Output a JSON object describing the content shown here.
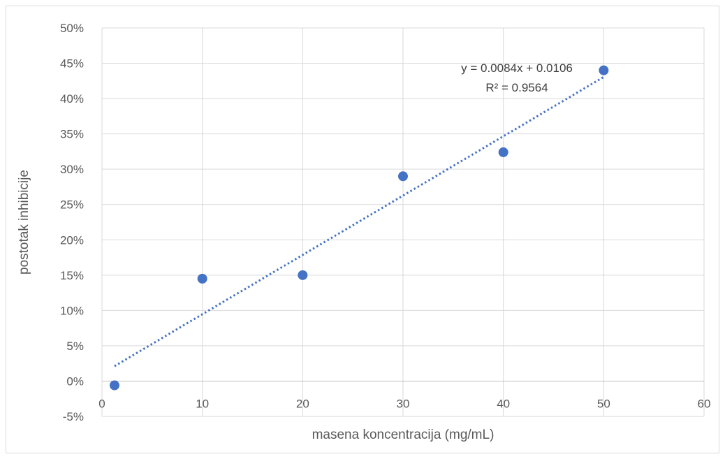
{
  "chart_data": {
    "type": "scatter",
    "xlabel": "masena koncentracija (mg/mL)",
    "ylabel": "postotak inhibicije",
    "xlim": [
      0,
      60
    ],
    "ylim": [
      -0.05,
      0.5
    ],
    "x_ticks": [
      0,
      10,
      20,
      30,
      40,
      50,
      60
    ],
    "x_tick_labels": [
      "0",
      "10",
      "20",
      "30",
      "40",
      "50",
      "60"
    ],
    "y_ticks": [
      -0.05,
      0,
      0.05,
      0.1,
      0.15,
      0.2,
      0.25,
      0.3,
      0.35,
      0.4,
      0.45,
      0.5
    ],
    "y_tick_labels": [
      "-5%",
      "0%",
      "5%",
      "10%",
      "15%",
      "20%",
      "25%",
      "30%",
      "35%",
      "40%",
      "45%",
      "50%"
    ],
    "grid": true,
    "series": [
      {
        "points": [
          {
            "x": 1.25,
            "y": -0.006
          },
          {
            "x": 10,
            "y": 0.145
          },
          {
            "x": 20,
            "y": 0.15
          },
          {
            "x": 30,
            "y": 0.29
          },
          {
            "x": 40,
            "y": 0.324
          },
          {
            "x": 50,
            "y": 0.44
          }
        ],
        "color": "#4472c4"
      }
    ],
    "trendline": {
      "type": "linear",
      "slope": 0.0084,
      "intercept": 0.0106,
      "x_range": [
        1.25,
        50
      ],
      "style": "dotted",
      "color": "#4472c4",
      "equation_label": "y = 0.0084x + 0.0106",
      "r2_label": "R² = 0.9564"
    }
  }
}
